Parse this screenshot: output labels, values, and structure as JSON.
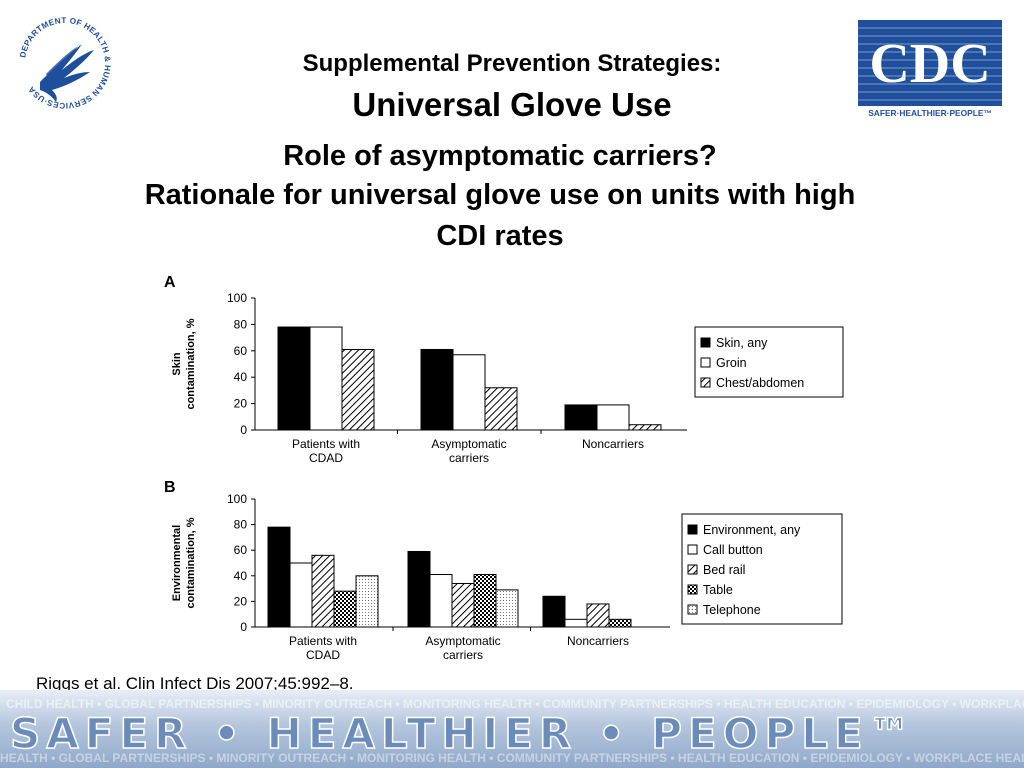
{
  "header": {
    "subtitle": "Supplemental Prevention Strategies:",
    "title": "Universal Glove Use",
    "heading_line1": "Role of asymptomatic carriers?",
    "heading_line2": "Rationale for universal glove use on units with high",
    "heading_line3": "CDI rates"
  },
  "logos": {
    "hhs_ring_text": "DEPARTMENT OF HEALTH & HUMAN SERVICES·USA",
    "cdc_mark": "CDC",
    "cdc_tagline": "SAFER·HEALTHIER·PEOPLE™"
  },
  "citation": "Riggs et al. Clin Infect Dis 2007;45:992–8.",
  "banner": {
    "text": "SAFER • HEALTHIER • PEOPLE™",
    "backdrop_text": "CHILD HEALTH • GLOBAL PARTNERSHIPS • MINORITY OUTREACH • MONITORING HEALTH • COMMUNITY PARTNERSHIPS • HEALTH EDUCATION • EPIDEMIOLOGY • WORKPLACE HEALTH • INJURY PREVENTION • WORKPLACE SAFETY • TRAINING"
  },
  "colors": {
    "cdc_blue": "#1e4f9c",
    "banner_blue": "#7d9cc4"
  },
  "chart_data": [
    {
      "panel": "A",
      "type": "bar",
      "ylabel": "Skin\ncontamination, %",
      "ylim": [
        0,
        100
      ],
      "yticks": [
        0,
        20,
        40,
        60,
        80,
        100
      ],
      "categories": [
        "Patients with\nCDAD",
        "Asymptomatic\ncarriers",
        "Noncarriers"
      ],
      "series": [
        {
          "name": "Skin, any",
          "pattern": "solid-black",
          "values": [
            78,
            61,
            19
          ]
        },
        {
          "name": "Groin",
          "pattern": "white",
          "values": [
            78,
            57,
            19
          ]
        },
        {
          "name": "Chest/abdomen",
          "pattern": "diagonal-hatch",
          "values": [
            61,
            32,
            4
          ]
        }
      ],
      "legend_position": "right"
    },
    {
      "panel": "B",
      "type": "bar",
      "ylabel": "Environmental\ncontamination, %",
      "ylim": [
        0,
        100
      ],
      "yticks": [
        0,
        20,
        40,
        60,
        80,
        100
      ],
      "categories": [
        "Patients with\nCDAD",
        "Asymptomatic\ncarriers",
        "Noncarriers"
      ],
      "series": [
        {
          "name": "Environment, any",
          "pattern": "solid-black",
          "values": [
            78,
            59,
            24
          ]
        },
        {
          "name": "Call button",
          "pattern": "white",
          "values": [
            50,
            41,
            6
          ]
        },
        {
          "name": "Bed rail",
          "pattern": "diagonal-hatch",
          "values": [
            56,
            34,
            18
          ]
        },
        {
          "name": "Table",
          "pattern": "grid-dots",
          "values": [
            28,
            41,
            6
          ]
        },
        {
          "name": "Telephone",
          "pattern": "light-dots",
          "values": [
            40,
            29,
            0
          ]
        }
      ],
      "legend_position": "right"
    }
  ]
}
